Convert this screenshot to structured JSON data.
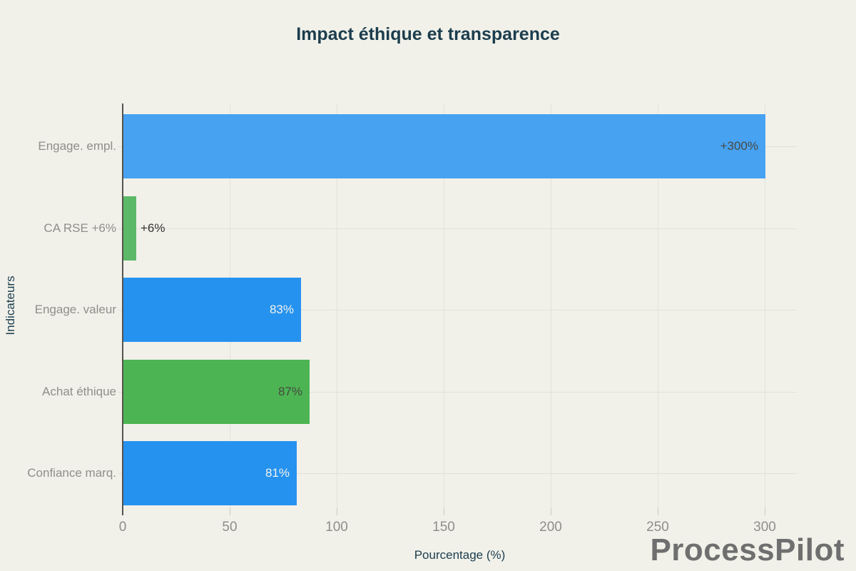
{
  "chart_data": {
    "type": "bar",
    "orientation": "horizontal",
    "title": "Impact éthique et transparence",
    "xlabel": "Pourcentage (%)",
    "ylabel": "Indicateurs",
    "categories": [
      "Engage. empl.",
      "CA RSE +6%",
      "Engage. valeur",
      "Achat éthique",
      "Confiance marq."
    ],
    "values": [
      300,
      6,
      83,
      87,
      81
    ],
    "bars": [
      {
        "category": "Engage. empl.",
        "value": 300,
        "label": "+300%",
        "color": "#47a2f2",
        "label_placement": "inside",
        "label_color": "#4a4a45"
      },
      {
        "category": "CA RSE +6%",
        "value": 6,
        "label": "+6%",
        "color": "#5cb968",
        "label_placement": "outside",
        "label_color": "#35352f"
      },
      {
        "category": "Engage. valeur",
        "value": 83,
        "label": "83%",
        "color": "#2692ef",
        "label_placement": "inside",
        "label_color": "#f2f3ee"
      },
      {
        "category": "Achat éthique",
        "value": 87,
        "label": "87%",
        "color": "#4db453",
        "label_placement": "inside",
        "label_color": "#45493f"
      },
      {
        "category": "Confiance marq.",
        "value": 81,
        "label": "81%",
        "color": "#2692ef",
        "label_placement": "inside",
        "label_color": "#f2f3ee"
      }
    ],
    "x_ticks": [
      0,
      50,
      100,
      150,
      200,
      250,
      300
    ],
    "xlim": [
      0,
      315
    ],
    "grid": true,
    "legend": false
  },
  "watermark": "ProcessPilot",
  "colors": {
    "background": "#f1f1ea",
    "title": "#1c3d4d",
    "axis_title": "#1c3d4d",
    "tick_label": "#8f8f89",
    "gridline": "#e2e2db",
    "axis_line": "#54534d"
  }
}
